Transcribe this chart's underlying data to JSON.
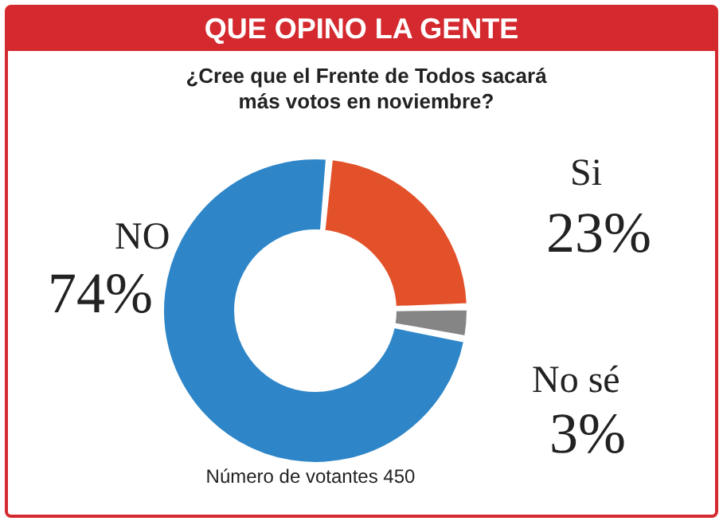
{
  "chart_data": {
    "type": "donut",
    "title": "QUE OPINO LA GENTE",
    "subtitle": "¿Cree que el Frente de Todos sacará más votos en noviembre?",
    "categories": [
      "Si",
      "No sé",
      "NO"
    ],
    "values": [
      23,
      3,
      74
    ],
    "colors": [
      "#e2512a",
      "#858585",
      "#2e86c8"
    ],
    "value_labels": [
      "23%",
      "3%",
      "74%"
    ],
    "annotations": [
      "Número de votantes 450"
    ]
  }
}
